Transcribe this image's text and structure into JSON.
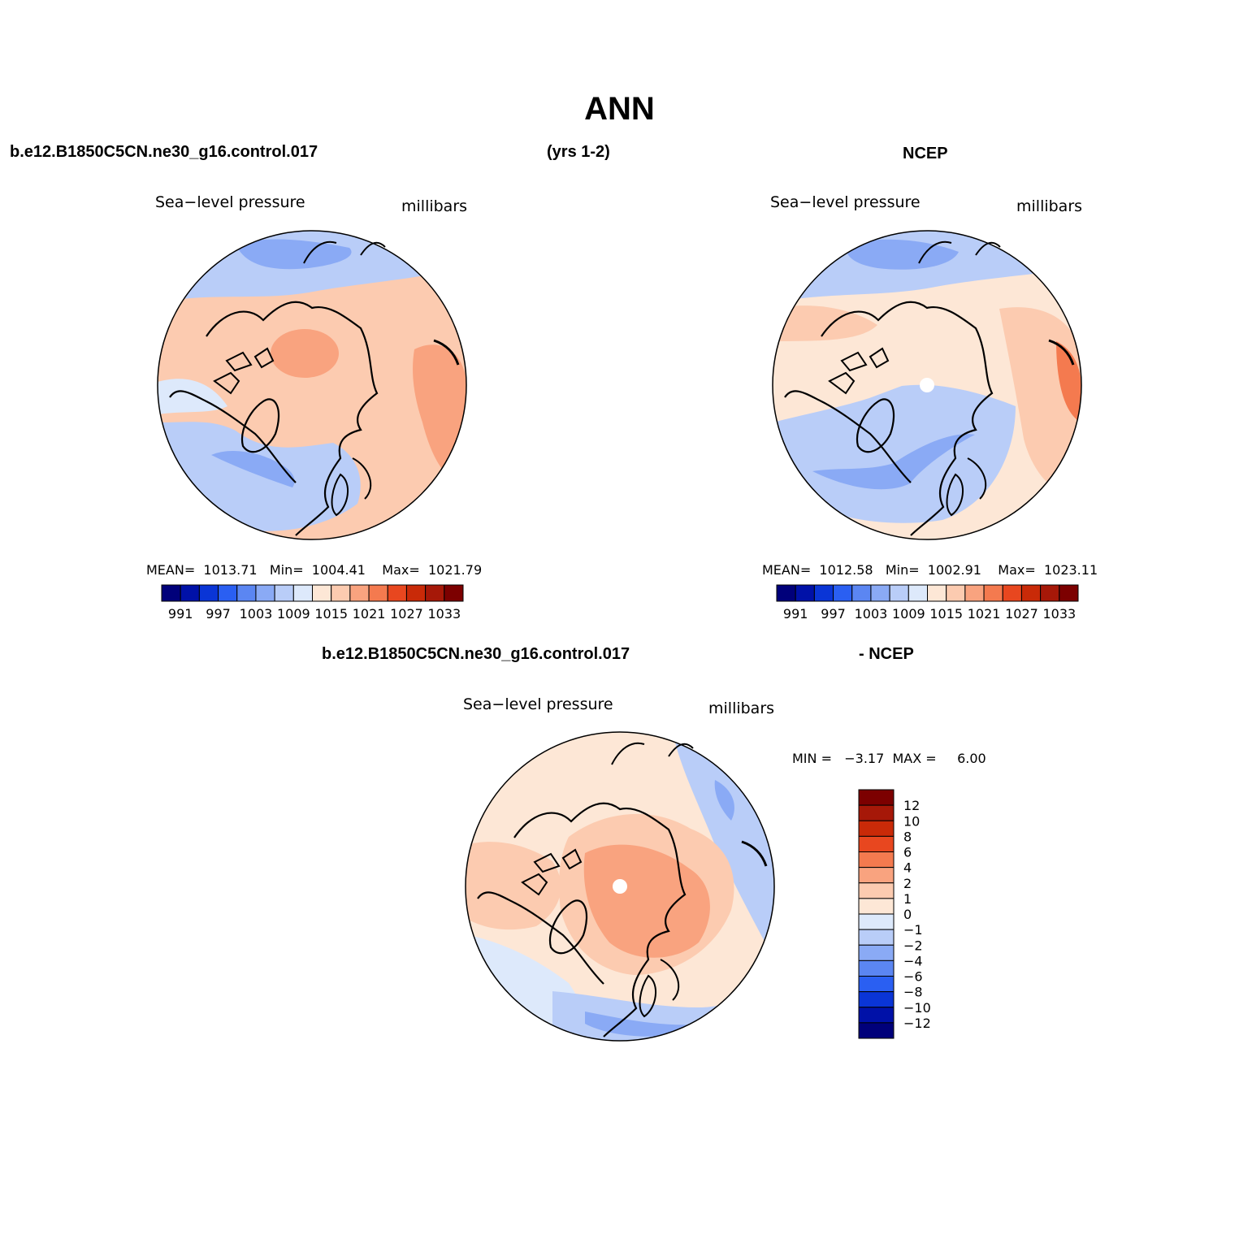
{
  "title": "ANN",
  "top_left_header": "b.e12.B1850C5CN.ne30_g16.control.017",
  "years": "(yrs 1-2)",
  "top_right_header": "NCEP",
  "bottom_header_left": "b.e12.B1850C5CN.ne30_g16.control.017",
  "bottom_header_right": "- NCEP",
  "panels": {
    "model": {
      "variable": "Sea−level pressure",
      "units": "millibars",
      "stats": "MEAN=  1013.71   Min=  1004.41    Max=  1021.79"
    },
    "ncep": {
      "variable": "Sea−level pressure",
      "units": "millibars",
      "stats": "MEAN=  1012.58   Min=  1002.91    Max=  1023.11"
    },
    "diff": {
      "variable": "Sea−level pressure",
      "units": "millibars",
      "stats": "MIN =   −3.17  MAX =     6.00"
    }
  },
  "abs_colorbar": {
    "colors": [
      "#00007a",
      "#0011a8",
      "#0a35d6",
      "#2a5ff2",
      "#5b86f2",
      "#8aaaf5",
      "#b9cdf8",
      "#dde9fb",
      "#fde7d6",
      "#fccbb0",
      "#f9a37f",
      "#f47a4f",
      "#e8471f",
      "#c92a08",
      "#a61808",
      "#7c0000"
    ],
    "labels": [
      "991",
      "997",
      "1003",
      "1009",
      "1015",
      "1021",
      "1027",
      "1033"
    ]
  },
  "diff_colorbar": {
    "colors": [
      "#00007a",
      "#0011a8",
      "#0a35d6",
      "#2a5ff2",
      "#5b86f2",
      "#8aaaf5",
      "#b9cdf8",
      "#dde9fb",
      "#fde7d6",
      "#fccbb0",
      "#f9a37f",
      "#f47a4f",
      "#e8471f",
      "#c92a08",
      "#a61808",
      "#7c0000"
    ],
    "labels": [
      "12",
      "10",
      "8",
      "6",
      "4",
      "2",
      "1",
      "0",
      "−1",
      "−2",
      "−4",
      "−6",
      "−8",
      "−10",
      "−12"
    ]
  }
}
